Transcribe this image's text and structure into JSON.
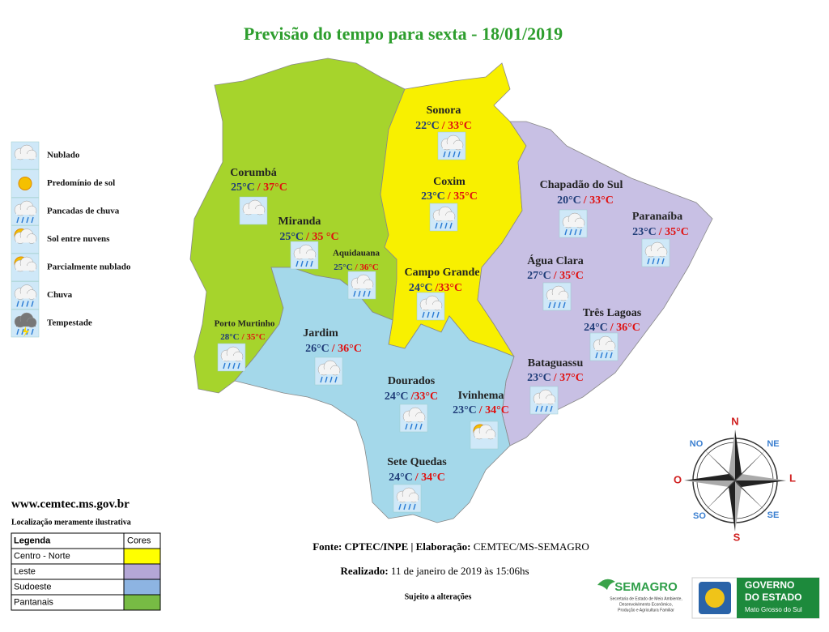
{
  "title": "Previsão do tempo para sexta - 18/01/2019",
  "icon_legend": [
    "Nublado",
    "Predomínio de sol",
    "Pancadas de chuva",
    "Sol entre nuvens",
    "Parcialmente nublado",
    "Chuva",
    "Tempestade"
  ],
  "cities": [
    {
      "name": "Sonora",
      "min": "22°C",
      "max": "/ 33°C"
    },
    {
      "name": "Corumbá",
      "min": "25°C",
      "max": "/ 37°C"
    },
    {
      "name": "Coxim",
      "min": "23°C",
      "max": "/ 35°C"
    },
    {
      "name": "Chapadão do Sul",
      "min": "20°C",
      "max": "/ 33°C"
    },
    {
      "name": "Paranaíba",
      "min": "23°C",
      "max": "/ 35°C"
    },
    {
      "name": "Miranda",
      "min": "25°C",
      "max": "/ 35 °C"
    },
    {
      "name": "Aquidauana",
      "min": "25°C",
      "max": "/ 36°C"
    },
    {
      "name": "Campo Grande",
      "min": "24°C",
      "max": "/33°C"
    },
    {
      "name": "Água Clara",
      "min": "27°C",
      "max": "/ 35°C"
    },
    {
      "name": "Três Lagoas",
      "min": "24°C",
      "max": "/ 36°C"
    },
    {
      "name": "Porto Murtinho",
      "min": "28°C",
      "max": "/ 35°C"
    },
    {
      "name": "Jardim",
      "min": "26°C",
      "max": "/ 36°C"
    },
    {
      "name": "Bataguassu",
      "min": "23°C",
      "max": "/ 37°C"
    },
    {
      "name": "Dourados",
      "min": "24°C",
      "max": "/33°C"
    },
    {
      "name": "Ivinhema",
      "min": "23°C",
      "max": "/ 34°C"
    },
    {
      "name": "Sete Quedas",
      "min": "24°C",
      "max": "/ 34°C"
    }
  ],
  "website": "www.cemtec.ms.gov.br",
  "note": "Localização meramente ilustrativa",
  "region_legend": {
    "header": [
      "Legenda",
      "Cores"
    ],
    "rows": [
      {
        "label": "Centro - Norte",
        "color": "#ffff00"
      },
      {
        "label": "Leste",
        "color": "#b4a7d6"
      },
      {
        "label": "Sudoeste",
        "color": "#8db4e2"
      },
      {
        "label": "Pantanais",
        "color": "#77bb44"
      }
    ]
  },
  "source_label": "Fonte: CPTEC/INPE | Elaboração:",
  "source_value": "CEMTEC/MS-SEMAGRO",
  "made_label": "Realizado:",
  "made_value": "11 de janeiro de 2019 às 15:06hs",
  "disclaimer": "Sujeito a alterações",
  "compass": [
    "N",
    "NE",
    "L",
    "SE",
    "S",
    "SO",
    "O",
    "NO"
  ],
  "semagro": {
    "name": "SEMAGRO",
    "lines": [
      "Secretaria de Estado de Meio Ambiente,",
      "Desenvolvimento Econômico,",
      "Produção e Agricultura Familiar"
    ]
  },
  "governo": {
    "title_1": "GOVERNO",
    "title_2": "DO ESTADO",
    "state": "Mato Grosso do Sul"
  }
}
